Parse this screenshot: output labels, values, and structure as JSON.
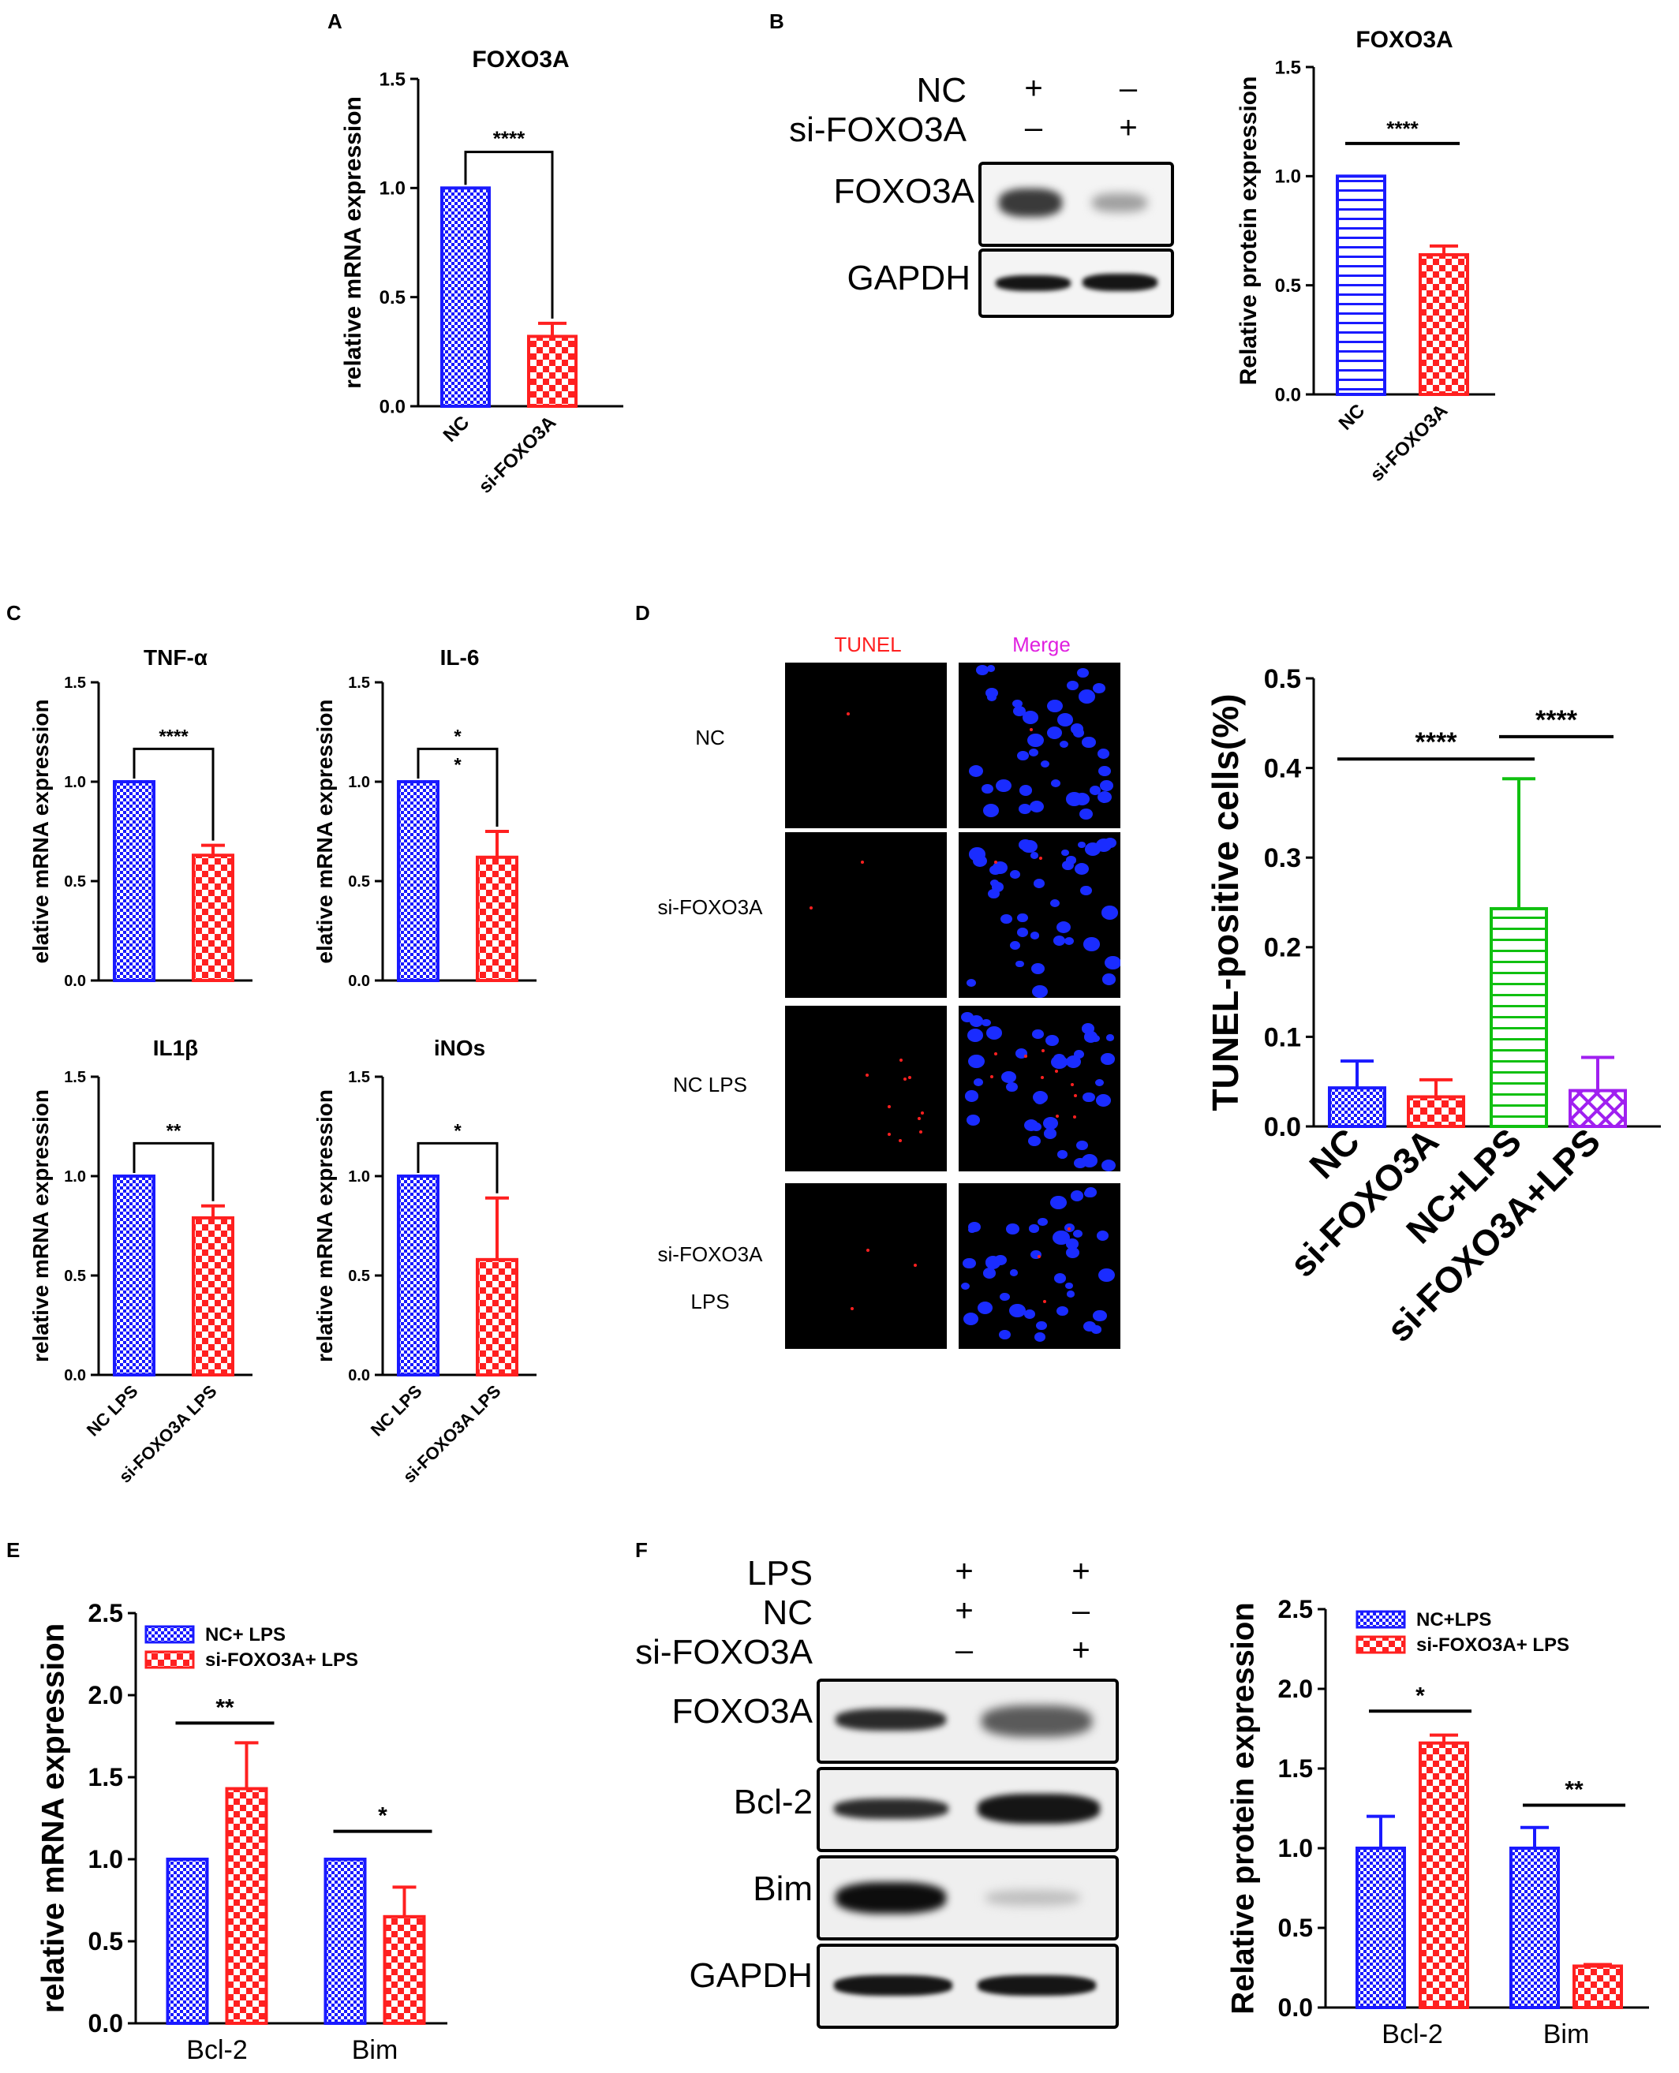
{
  "colors": {
    "blue": "#1a1aff",
    "red": "#ff2020",
    "green": "#10c010",
    "purple": "#a020f0",
    "black": "#000000"
  },
  "panels": {
    "A": "A",
    "B": "B",
    "C": "C",
    "D": "D",
    "E": "E",
    "F": "F"
  },
  "chart_data": [
    {
      "id": "A",
      "type": "bar",
      "title": "FOXO3A",
      "ylabel": "relative mRNA expression",
      "xlabel": "",
      "ylim": [
        0,
        1.5
      ],
      "yticks": [
        "0.0",
        "0.5",
        "1.0",
        "1.5"
      ],
      "categories": [
        "NC",
        "si-FOXO3A"
      ],
      "values": [
        1.0,
        0.32
      ],
      "errors": [
        0,
        0.06
      ],
      "sig": [
        {
          "from": 0,
          "to": 1,
          "label": "****",
          "style": "bracket"
        }
      ]
    },
    {
      "id": "B",
      "type": "bar",
      "title": "FOXO3A",
      "ylabel": "Relative protein expression",
      "xlabel": "",
      "ylim": [
        0,
        1.5
      ],
      "yticks": [
        "0.0",
        "0.5",
        "1.0",
        "1.5"
      ],
      "categories": [
        "NC",
        "si-FOXO3A"
      ],
      "values": [
        1.0,
        0.64
      ],
      "errors": [
        0,
        0.04
      ],
      "sig": [
        {
          "from": 0,
          "to": 1,
          "label": "****",
          "style": "line"
        }
      ]
    },
    {
      "id": "C1",
      "type": "bar",
      "title": "TNF-α",
      "ylabel": "elative mRNA expression",
      "xlabel": "",
      "ylim": [
        0,
        1.5
      ],
      "yticks": [
        "0.0",
        "0.5",
        "1.0",
        "1.5"
      ],
      "categories": [
        "",
        ""
      ],
      "values": [
        1.0,
        0.63
      ],
      "errors": [
        0,
        0.05
      ],
      "sig": [
        {
          "from": 0,
          "to": 1,
          "label": "****",
          "style": "bracket"
        }
      ]
    },
    {
      "id": "C2",
      "type": "bar",
      "title": "IL-6",
      "ylabel": "elative mRNA expression",
      "xlabel": "",
      "ylim": [
        0,
        1.5
      ],
      "yticks": [
        "0.0",
        "0.5",
        "1.0",
        "1.5"
      ],
      "categories": [
        "",
        ""
      ],
      "values": [
        1.0,
        0.62
      ],
      "errors": [
        0,
        0.13
      ],
      "sig": [
        {
          "from": 0,
          "to": 1,
          "label": "*\n*",
          "style": "bracket"
        }
      ]
    },
    {
      "id": "C3",
      "type": "bar",
      "title": "IL1β",
      "ylabel": "relative mRNA expression",
      "xlabel": "",
      "ylim": [
        0,
        1.5
      ],
      "yticks": [
        "0.0",
        "0.5",
        "1.0",
        "1.5"
      ],
      "categories": [
        "NC LPS",
        "si-FOXO3A LPS"
      ],
      "values": [
        1.0,
        0.79
      ],
      "errors": [
        0,
        0.06
      ],
      "sig": [
        {
          "from": 0,
          "to": 1,
          "label": "**",
          "style": "bracket"
        }
      ]
    },
    {
      "id": "C4",
      "type": "bar",
      "title": "iNOs",
      "ylabel": "relative mRNA expression",
      "xlabel": "",
      "ylim": [
        0,
        1.5
      ],
      "yticks": [
        "0.0",
        "0.5",
        "1.0",
        "1.5"
      ],
      "categories": [
        "NC LPS",
        "si-FOXO3A LPS"
      ],
      "values": [
        1.0,
        0.58
      ],
      "errors": [
        0,
        0.31
      ],
      "sig": [
        {
          "from": 0,
          "to": 1,
          "label": "*",
          "style": "bracket"
        }
      ]
    },
    {
      "id": "D",
      "type": "bar",
      "title": "",
      "ylabel": "TUNEL-positive cells(%)",
      "xlabel": "",
      "ylim": [
        0,
        0.5
      ],
      "yticks": [
        "0.0",
        "0.1",
        "0.2",
        "0.3",
        "0.4",
        "0.5"
      ],
      "categories": [
        "NC",
        "si-FOXO3A",
        "NC+LPS",
        "si-FOXO3A+LPS"
      ],
      "values": [
        0.043,
        0.033,
        0.243,
        0.04
      ],
      "errors": [
        0.03,
        0.019,
        0.145,
        0.037
      ],
      "sig": [
        {
          "from": 0,
          "to": 2,
          "label": "****",
          "style": "line",
          "y": 0.41
        },
        {
          "from": 2,
          "to": 3,
          "label": "****",
          "style": "line",
          "y": 0.435
        }
      ]
    },
    {
      "id": "E",
      "type": "bar",
      "title": "",
      "ylabel": "relative mRNA expression",
      "xlabel": "",
      "ylim": [
        0,
        2.5
      ],
      "yticks": [
        "0.0",
        "0.5",
        "1.0",
        "1.5",
        "2.0",
        "2.5"
      ],
      "categories": [
        "Bcl-2",
        "Bim"
      ],
      "series": [
        {
          "name": "NC+ LPS",
          "values": [
            1.0,
            1.0
          ],
          "errors": [
            0,
            0
          ]
        },
        {
          "name": "si-FOXO3A+ LPS",
          "values": [
            1.43,
            0.65
          ],
          "errors": [
            0.28,
            0.18
          ]
        }
      ],
      "sig": [
        {
          "group": 0,
          "label": "**",
          "y": 1.83
        },
        {
          "group": 1,
          "label": "*",
          "y": 1.17
        }
      ]
    },
    {
      "id": "F",
      "type": "bar",
      "title": "",
      "ylabel": "Relative protein expression",
      "xlabel": "",
      "ylim": [
        0,
        2.5
      ],
      "yticks": [
        "0.0",
        "0.5",
        "1.0",
        "1.5",
        "2.0",
        "2.5"
      ],
      "categories": [
        "Bcl-2",
        "Bim"
      ],
      "series": [
        {
          "name": "NC+LPS",
          "values": [
            1.0,
            1.0
          ],
          "errors": [
            0.2,
            0.13
          ]
        },
        {
          "name": "si-FOXO3A+ LPS",
          "values": [
            1.66,
            0.26
          ],
          "errors": [
            0.05,
            0.01
          ]
        }
      ],
      "sig": [
        {
          "group": 0,
          "label": "*",
          "y": 1.86
        },
        {
          "group": 1,
          "label": "**",
          "y": 1.27
        }
      ]
    }
  ],
  "blotB": {
    "rows": [
      "NC",
      "si-FOXO3A"
    ],
    "signs": [
      [
        "+",
        "–"
      ],
      [
        "–",
        "+"
      ]
    ],
    "bands": [
      "FOXO3A",
      "GAPDH"
    ]
  },
  "blotF": {
    "rows": [
      "LPS",
      "NC",
      "si-FOXO3A"
    ],
    "signs": [
      [
        "+",
        "+"
      ],
      [
        "+",
        "–"
      ],
      [
        "–",
        "+"
      ]
    ],
    "bands": [
      "FOXO3A",
      "Bcl-2",
      "Bim",
      "GAPDH"
    ]
  },
  "microscopy": {
    "headers": [
      "TUNEL",
      "Merge"
    ],
    "rows": [
      "NC",
      "si-FOXO3A",
      "NC LPS",
      "si-FOXO3A\nLPS"
    ]
  }
}
